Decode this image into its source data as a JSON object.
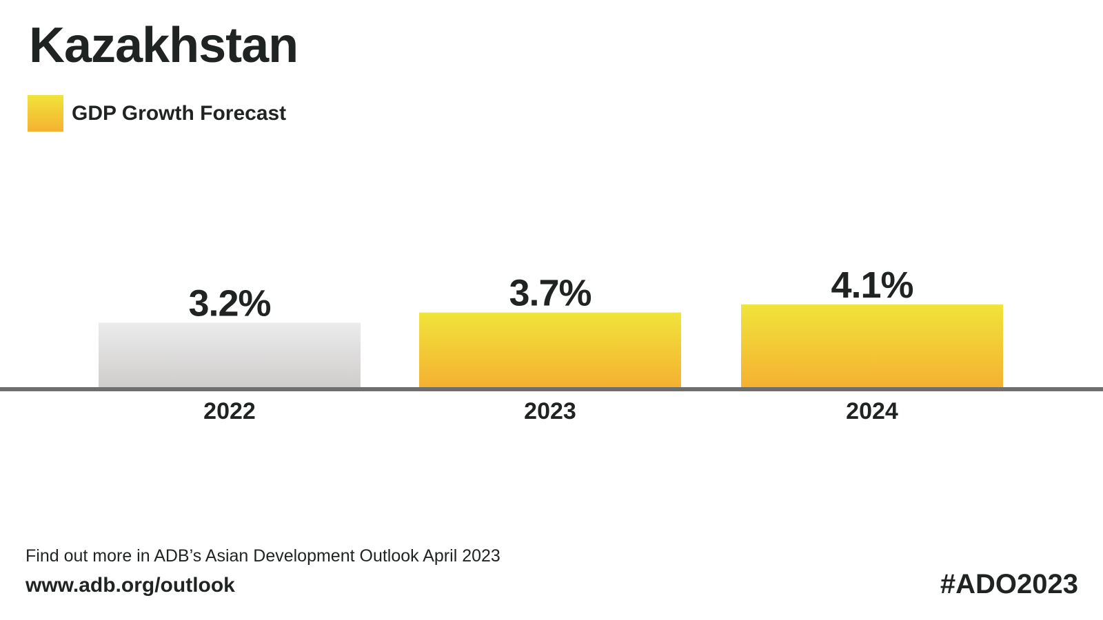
{
  "colors": {
    "actual_top": "#ececec",
    "actual_bottom": "#cfcdcc",
    "forecast_top": "#f0e43a",
    "forecast_bottom": "#f5b132",
    "axis": "#6e6e6e",
    "text": "#1f2321"
  },
  "chart_data": {
    "type": "bar",
    "title": "Kazakhstan",
    "legend": [
      {
        "label": "GDP Growth Forecast",
        "color": "#f0e43a"
      }
    ],
    "legend_position": "top-left",
    "categories": [
      "2022",
      "2023",
      "2024"
    ],
    "series": [
      {
        "name": "GDP Growth Forecast",
        "values": [
          3.2,
          3.7,
          4.1
        ],
        "labels": [
          "3.2%",
          "3.7%",
          "4.1%"
        ],
        "forecast": [
          false,
          true,
          true
        ]
      }
    ],
    "ylim": [
      0,
      4.1
    ],
    "grid": false,
    "xlabel": "",
    "ylabel": ""
  },
  "footer": {
    "text": "Find out more in ADB’s Asian Development Outlook April 2023",
    "url": "www.adb.org/outlook",
    "hashtag": "#ADO2023"
  }
}
